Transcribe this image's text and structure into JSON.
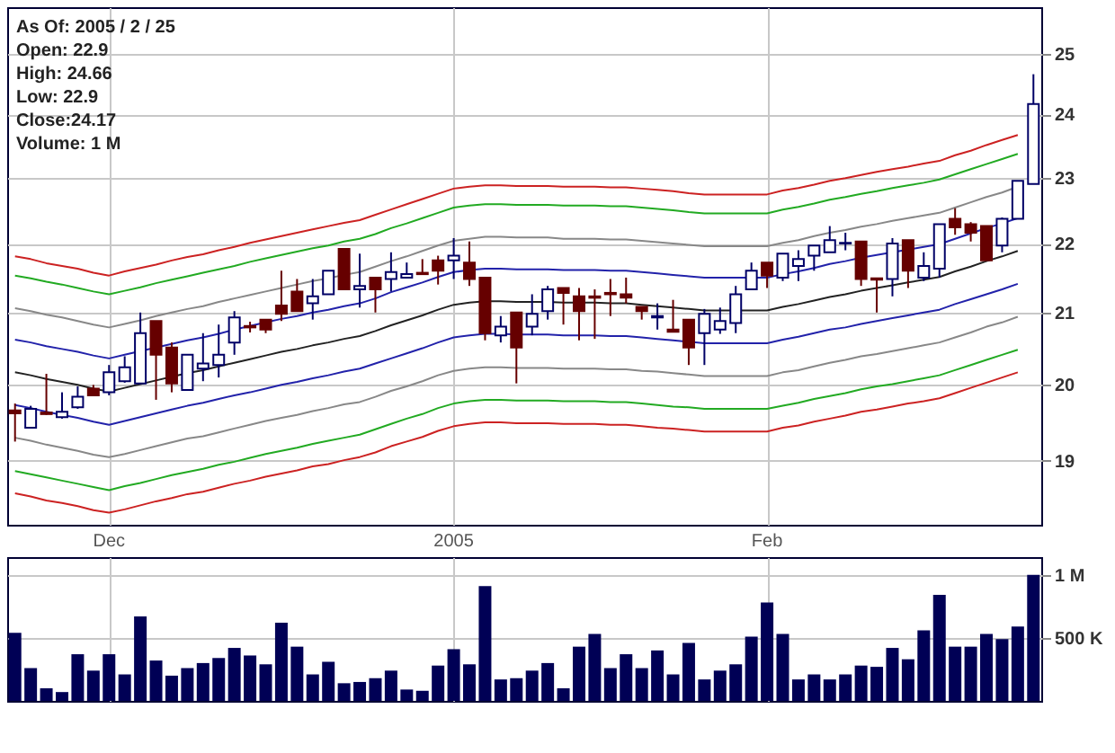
{
  "chart_data": [
    {
      "type": "candlestick",
      "log": "y",
      "grid": true,
      "annotations": [
        "As Of: 2005 / 2 / 25",
        "Open: 22.9",
        "High: 24.66",
        "Low: 22.9",
        "Close:24.17",
        "Volume: 1 M"
      ],
      "categories": [
        null,
        null,
        null,
        null,
        null,
        null,
        "Dec",
        null,
        null,
        null,
        null,
        null,
        null,
        null,
        null,
        null,
        null,
        null,
        null,
        null,
        null,
        null,
        null,
        null,
        null,
        null,
        null,
        null,
        "2005",
        null,
        null,
        null,
        null,
        null,
        null,
        null,
        null,
        null,
        null,
        null,
        null,
        null,
        null,
        null,
        null,
        null,
        null,
        null,
        "Feb",
        null,
        null,
        null,
        null,
        null,
        null,
        null,
        null,
        null,
        null,
        null,
        null,
        null,
        null,
        null,
        null,
        null
      ],
      "ylim": [
        18.2,
        25.8
      ],
      "yticks": [
        19,
        20,
        21,
        22,
        23,
        24,
        25
      ],
      "ohlc": [
        [
          19.66,
          19.75,
          19.25,
          19.62
        ],
        [
          19.43,
          19.72,
          19.43,
          19.68
        ],
        [
          19.63,
          20.15,
          19.6,
          19.61
        ],
        [
          19.57,
          19.9,
          19.55,
          19.64
        ],
        [
          19.7,
          19.98,
          19.68,
          19.84
        ],
        [
          19.95,
          20.0,
          19.85,
          19.86
        ],
        [
          19.9,
          20.27,
          19.86,
          20.17
        ],
        [
          20.05,
          20.39,
          20.03,
          20.24
        ],
        [
          20.02,
          21.0,
          20.02,
          20.71
        ],
        [
          20.88,
          20.88,
          19.8,
          20.41
        ],
        [
          20.51,
          20.58,
          19.9,
          20.02
        ],
        [
          19.93,
          20.41,
          19.93,
          20.41
        ],
        [
          20.22,
          20.71,
          20.05,
          20.29
        ],
        [
          20.27,
          20.83,
          20.1,
          20.41
        ],
        [
          20.58,
          21.02,
          20.41,
          20.93
        ],
        [
          20.81,
          20.87,
          20.72,
          20.79
        ],
        [
          20.9,
          20.9,
          20.71,
          20.76
        ],
        [
          21.1,
          21.6,
          20.88,
          20.98
        ],
        [
          21.3,
          21.48,
          21.02,
          21.02
        ],
        [
          21.13,
          21.48,
          20.9,
          21.23
        ],
        [
          21.26,
          21.6,
          21.26,
          21.6
        ],
        [
          21.92,
          21.92,
          21.33,
          21.33
        ],
        [
          21.33,
          21.85,
          21.07,
          21.38
        ],
        [
          21.5,
          21.5,
          21.0,
          21.33
        ],
        [
          21.48,
          21.87,
          21.3,
          21.58
        ],
        [
          21.5,
          21.72,
          21.5,
          21.55
        ],
        [
          21.57,
          21.77,
          21.55,
          21.55
        ],
        [
          21.75,
          21.82,
          21.4,
          21.6
        ],
        [
          21.75,
          22.08,
          21.48,
          21.82
        ],
        [
          21.72,
          22.03,
          21.38,
          21.48
        ],
        [
          21.5,
          21.5,
          20.61,
          20.71
        ],
        [
          20.68,
          20.95,
          20.58,
          20.8
        ],
        [
          21.0,
          21.0,
          20.02,
          20.51
        ],
        [
          20.8,
          21.26,
          20.68,
          20.98
        ],
        [
          21.02,
          21.38,
          20.9,
          21.33
        ],
        [
          21.35,
          21.35,
          20.83,
          21.28
        ],
        [
          21.23,
          21.35,
          20.61,
          21.02
        ],
        [
          21.23,
          21.33,
          20.63,
          21.21
        ],
        [
          21.28,
          21.48,
          20.95,
          21.26
        ],
        [
          21.26,
          21.5,
          21.13,
          21.21
        ],
        [
          21.08,
          21.08,
          20.9,
          21.02
        ],
        [
          20.93,
          21.13,
          20.76,
          20.95
        ],
        [
          20.76,
          21.18,
          20.73,
          20.73
        ],
        [
          20.9,
          20.9,
          20.27,
          20.51
        ],
        [
          20.71,
          21.05,
          20.27,
          20.98
        ],
        [
          20.76,
          21.07,
          20.7,
          20.88
        ],
        [
          20.85,
          21.38,
          20.71,
          21.26
        ],
        [
          21.33,
          21.72,
          21.33,
          21.6
        ],
        [
          21.72,
          21.72,
          21.35,
          21.53
        ],
        [
          21.5,
          21.85,
          21.45,
          21.85
        ],
        [
          21.67,
          21.9,
          21.45,
          21.77
        ],
        [
          21.82,
          21.97,
          21.6,
          21.97
        ],
        [
          21.87,
          22.26,
          21.87,
          22.05
        ],
        [
          22.0,
          22.16,
          21.9,
          22.01
        ],
        [
          22.03,
          22.03,
          21.38,
          21.48
        ],
        [
          21.49,
          21.49,
          21.0,
          21.47
        ],
        [
          21.48,
          22.08,
          21.23,
          22.0
        ],
        [
          22.05,
          22.05,
          21.35,
          21.6
        ],
        [
          21.5,
          21.87,
          21.45,
          21.67
        ],
        [
          21.63,
          22.29,
          21.5,
          22.29
        ],
        [
          22.37,
          22.53,
          22.13,
          22.24
        ],
        [
          22.29,
          22.32,
          22.03,
          22.16
        ],
        [
          22.26,
          22.26,
          21.75,
          21.75
        ],
        [
          21.97,
          22.39,
          21.87,
          22.37
        ],
        [
          22.37,
          22.95,
          22.37,
          22.95
        ],
        [
          22.9,
          24.66,
          22.9,
          24.17
        ]
      ],
      "series": [
        {
          "type": "line",
          "color": "#cc2222",
          "values": [
            21.81,
            21.77,
            21.71,
            21.67,
            21.63,
            21.57,
            21.53,
            21.59,
            21.64,
            21.69,
            21.75,
            21.8,
            21.84,
            21.9,
            21.95,
            22.01,
            22.06,
            22.11,
            22.16,
            22.21,
            22.26,
            22.31,
            22.35,
            22.43,
            22.51,
            22.59,
            22.67,
            22.75,
            22.83,
            22.86,
            22.88,
            22.88,
            22.87,
            22.87,
            22.87,
            22.86,
            22.86,
            22.86,
            22.85,
            22.85,
            22.83,
            22.81,
            22.79,
            22.76,
            22.74,
            22.74,
            22.74,
            22.74,
            22.74,
            22.8,
            22.84,
            22.89,
            22.95,
            22.99,
            23.04,
            23.09,
            23.13,
            23.17,
            23.22,
            23.26,
            23.35,
            23.42,
            23.51,
            23.59,
            23.67,
            null
          ]
        },
        {
          "type": "line",
          "color": "#22aa22",
          "values": [
            21.53,
            21.49,
            21.44,
            21.4,
            21.35,
            21.3,
            21.26,
            21.31,
            21.36,
            21.42,
            21.47,
            21.52,
            21.57,
            21.62,
            21.67,
            21.73,
            21.78,
            21.83,
            21.88,
            21.93,
            21.97,
            22.03,
            22.07,
            22.14,
            22.23,
            22.3,
            22.38,
            22.46,
            22.54,
            22.57,
            22.59,
            22.59,
            22.58,
            22.58,
            22.58,
            22.57,
            22.57,
            22.57,
            22.56,
            22.56,
            22.54,
            22.52,
            22.5,
            22.47,
            22.45,
            22.45,
            22.45,
            22.45,
            22.45,
            22.51,
            22.55,
            22.6,
            22.66,
            22.7,
            22.75,
            22.79,
            22.84,
            22.88,
            22.92,
            22.97,
            23.05,
            23.13,
            23.21,
            23.29,
            23.37,
            null
          ]
        },
        {
          "type": "line",
          "color": "#888888",
          "values": [
            21.06,
            21.02,
            20.97,
            20.93,
            20.88,
            20.83,
            20.79,
            20.84,
            20.89,
            20.95,
            21.0,
            21.05,
            21.09,
            21.15,
            21.2,
            21.25,
            21.3,
            21.35,
            21.4,
            21.45,
            21.49,
            21.54,
            21.58,
            21.66,
            21.74,
            21.81,
            21.89,
            21.97,
            22.04,
            22.07,
            22.1,
            22.1,
            22.09,
            22.09,
            22.09,
            22.07,
            22.07,
            22.07,
            22.06,
            22.06,
            22.04,
            22.02,
            22.0,
            21.98,
            21.96,
            21.96,
            21.96,
            21.96,
            21.96,
            22.01,
            22.05,
            22.11,
            22.16,
            22.2,
            22.25,
            22.29,
            22.34,
            22.38,
            22.42,
            22.46,
            22.54,
            22.62,
            22.7,
            22.77,
            22.86,
            null
          ]
        },
        {
          "type": "line",
          "color": "#2222aa",
          "values": [
            20.62,
            20.58,
            20.53,
            20.49,
            20.45,
            20.4,
            20.36,
            20.41,
            20.46,
            20.51,
            20.56,
            20.61,
            20.65,
            20.7,
            20.76,
            20.81,
            20.86,
            20.91,
            20.95,
            21.0,
            21.04,
            21.09,
            21.13,
            21.2,
            21.29,
            21.36,
            21.43,
            21.51,
            21.58,
            21.61,
            21.63,
            21.63,
            21.62,
            21.62,
            21.62,
            21.61,
            21.61,
            21.61,
            21.6,
            21.6,
            21.58,
            21.56,
            21.54,
            21.52,
            21.5,
            21.5,
            21.5,
            21.5,
            21.5,
            21.55,
            21.59,
            21.64,
            21.7,
            21.74,
            21.79,
            21.83,
            21.87,
            21.91,
            21.95,
            21.99,
            22.07,
            22.15,
            22.23,
            22.3,
            22.38,
            null
          ]
        },
        {
          "type": "line",
          "color": "#222222",
          "values": [
            20.17,
            20.13,
            20.08,
            20.04,
            20.0,
            19.95,
            19.91,
            19.96,
            20.01,
            20.06,
            20.11,
            20.16,
            20.2,
            20.25,
            20.3,
            20.35,
            20.4,
            20.45,
            20.49,
            20.54,
            20.58,
            20.63,
            20.67,
            20.74,
            20.82,
            20.89,
            20.96,
            21.04,
            21.11,
            21.14,
            21.16,
            21.16,
            21.15,
            21.15,
            21.15,
            21.14,
            21.14,
            21.14,
            21.13,
            21.13,
            21.11,
            21.09,
            21.07,
            21.05,
            21.03,
            21.03,
            21.03,
            21.03,
            21.03,
            21.08,
            21.12,
            21.17,
            21.22,
            21.26,
            21.31,
            21.35,
            21.39,
            21.43,
            21.47,
            21.51,
            21.59,
            21.66,
            21.74,
            21.81,
            21.89,
            null
          ]
        },
        {
          "type": "line",
          "color": "#2222aa",
          "values": [
            19.73,
            19.69,
            19.64,
            19.6,
            19.56,
            19.51,
            19.47,
            19.52,
            19.57,
            19.62,
            19.67,
            19.72,
            19.76,
            19.81,
            19.86,
            19.9,
            19.95,
            20.0,
            20.04,
            20.09,
            20.13,
            20.18,
            20.22,
            20.29,
            20.36,
            20.43,
            20.5,
            20.58,
            20.65,
            20.68,
            20.7,
            20.7,
            20.69,
            20.69,
            20.69,
            20.68,
            20.68,
            20.68,
            20.67,
            20.67,
            20.65,
            20.63,
            20.61,
            20.59,
            20.57,
            20.57,
            20.57,
            20.57,
            20.57,
            20.62,
            20.66,
            20.71,
            20.76,
            20.79,
            20.84,
            20.88,
            20.92,
            20.96,
            21.0,
            21.04,
            21.12,
            21.19,
            21.26,
            21.33,
            21.41,
            null
          ]
        },
        {
          "type": "line",
          "color": "#888888",
          "values": [
            19.3,
            19.26,
            19.21,
            19.17,
            19.13,
            19.08,
            19.05,
            19.09,
            19.14,
            19.19,
            19.24,
            19.29,
            19.32,
            19.37,
            19.42,
            19.47,
            19.52,
            19.56,
            19.6,
            19.65,
            19.69,
            19.74,
            19.77,
            19.84,
            19.92,
            19.98,
            20.05,
            20.13,
            20.19,
            20.22,
            20.24,
            20.24,
            20.23,
            20.23,
            20.23,
            20.22,
            20.22,
            20.22,
            20.21,
            20.21,
            20.19,
            20.18,
            20.16,
            20.14,
            20.12,
            20.12,
            20.12,
            20.12,
            20.12,
            20.17,
            20.2,
            20.25,
            20.3,
            20.34,
            20.39,
            20.42,
            20.46,
            20.5,
            20.54,
            20.58,
            20.65,
            20.72,
            20.8,
            20.86,
            20.94,
            null
          ]
        },
        {
          "type": "line",
          "color": "#22aa22",
          "values": [
            18.87,
            18.83,
            18.79,
            18.75,
            18.71,
            18.67,
            18.63,
            18.68,
            18.72,
            18.77,
            18.82,
            18.86,
            18.9,
            18.95,
            18.99,
            19.04,
            19.09,
            19.13,
            19.17,
            19.22,
            19.26,
            19.3,
            19.34,
            19.41,
            19.48,
            19.55,
            19.61,
            19.69,
            19.75,
            19.78,
            19.8,
            19.8,
            19.79,
            19.79,
            19.79,
            19.78,
            19.78,
            19.78,
            19.77,
            19.77,
            19.75,
            19.73,
            19.71,
            19.7,
            19.68,
            19.68,
            19.68,
            19.68,
            19.68,
            19.72,
            19.76,
            19.81,
            19.85,
            19.89,
            19.94,
            19.98,
            20.01,
            20.05,
            20.09,
            20.13,
            20.2,
            20.27,
            20.34,
            20.41,
            20.48,
            null
          ]
        },
        {
          "type": "line",
          "color": "#cc2222",
          "values": [
            18.59,
            18.55,
            18.5,
            18.47,
            18.43,
            18.38,
            18.35,
            18.39,
            18.44,
            18.49,
            18.53,
            18.58,
            18.61,
            18.66,
            18.71,
            18.75,
            18.8,
            18.84,
            18.88,
            18.93,
            18.96,
            19.01,
            19.05,
            19.11,
            19.19,
            19.25,
            19.31,
            19.39,
            19.45,
            19.48,
            19.5,
            19.5,
            19.49,
            19.49,
            19.49,
            19.48,
            19.48,
            19.48,
            19.47,
            19.47,
            19.45,
            19.43,
            19.42,
            19.4,
            19.38,
            19.38,
            19.38,
            19.38,
            19.38,
            19.43,
            19.46,
            19.51,
            19.55,
            19.59,
            19.64,
            19.67,
            19.71,
            19.75,
            19.78,
            19.82,
            19.89,
            19.96,
            20.03,
            20.1,
            20.17,
            null
          ]
        }
      ]
    },
    {
      "type": "bar",
      "grid": true,
      "tick_labels": "y",
      "color": "#000055",
      "categories": [
        null,
        null,
        null,
        null,
        null,
        null,
        null,
        null,
        null,
        null,
        null,
        null,
        null,
        null,
        null,
        null,
        null,
        null,
        null,
        null,
        null,
        null,
        null,
        null,
        null,
        null,
        null,
        null,
        null,
        null,
        null,
        null,
        null,
        null,
        null,
        null,
        null,
        null,
        null,
        null,
        null,
        null,
        null,
        null,
        null,
        null,
        null,
        null,
        null,
        null,
        null,
        null,
        null,
        null,
        null,
        null,
        null,
        null,
        null,
        null,
        null,
        null,
        null,
        null,
        null,
        null
      ],
      "ylim": [
        0,
        1140000
      ],
      "yticks": [
        {
          "value": 500000,
          "label": "500 K"
        },
        {
          "value": 1000000,
          "label": "1 M"
        }
      ],
      "values": [
        540000,
        260000,
        100000,
        70000,
        370000,
        240000,
        370000,
        210000,
        670000,
        320000,
        200000,
        260000,
        300000,
        340000,
        420000,
        360000,
        290000,
        620000,
        430000,
        210000,
        310000,
        140000,
        150000,
        180000,
        240000,
        90000,
        80000,
        280000,
        410000,
        290000,
        910000,
        170000,
        180000,
        240000,
        300000,
        100000,
        430000,
        530000,
        260000,
        370000,
        260000,
        400000,
        210000,
        460000,
        170000,
        240000,
        290000,
        510000,
        780000,
        530000,
        170000,
        210000,
        170000,
        210000,
        280000,
        270000,
        420000,
        330000,
        560000,
        840000,
        430000,
        430000,
        530000,
        490000,
        590000,
        1000000
      ]
    }
  ]
}
